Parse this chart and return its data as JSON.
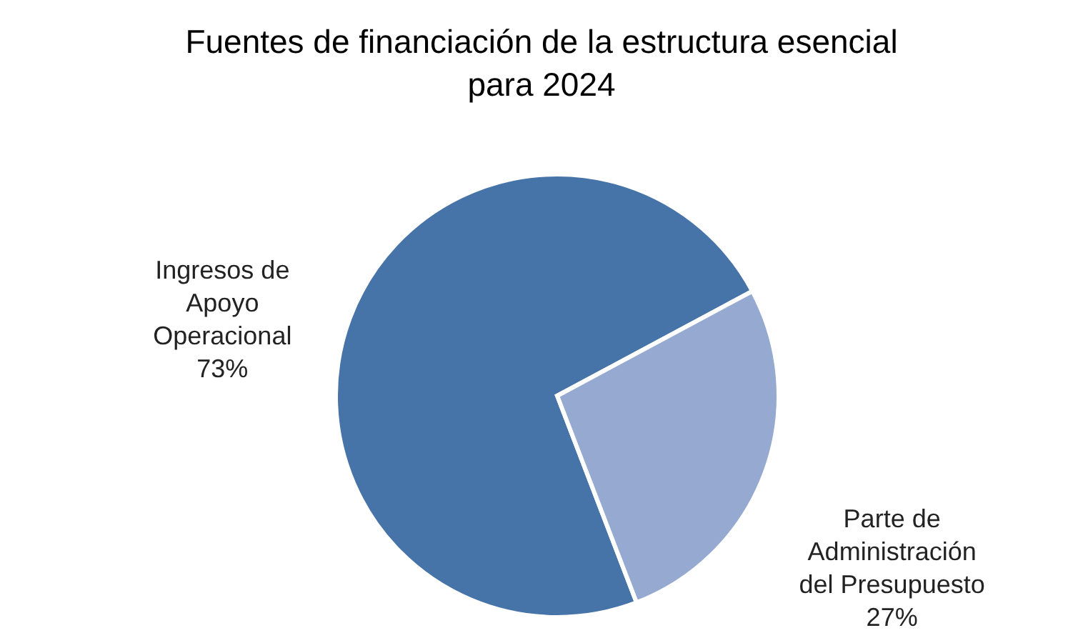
{
  "chart_data": {
    "type": "pie",
    "title": "Fuentes de financiación de la estructura esencial para 2024",
    "categories": [
      "Ingresos de Apoyo Operacional",
      "Parte de Administración del Presupuesto"
    ],
    "values": [
      73,
      27
    ],
    "colors": [
      "#4673a8",
      "#95a9d1"
    ],
    "value_labels": [
      "73%",
      "27%"
    ],
    "legend": false
  }
}
